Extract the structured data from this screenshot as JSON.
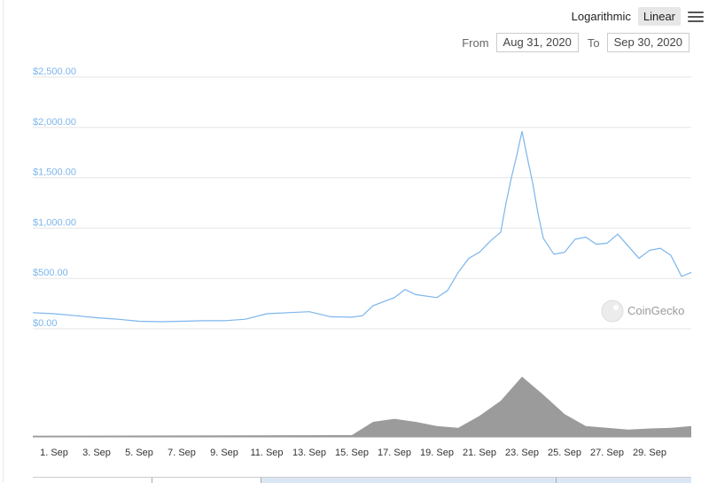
{
  "toolbar": {
    "scale_options": [
      "Logarithmic",
      "Linear"
    ],
    "active_scale": "Linear",
    "menu_icon": "hamburger-menu-icon"
  },
  "range_selector": {
    "from_label": "From",
    "from_value": "Aug 31, 2020",
    "to_label": "To",
    "to_value": "Sep 30, 2020"
  },
  "watermark": {
    "text": "CoinGecko",
    "icon": "coingecko-logo-icon"
  },
  "colors": {
    "line": "#7cb5ec",
    "volume": "#8a8a8a",
    "grid": "#e6e6e6",
    "accent": "#7cb5ec"
  },
  "chart_data": {
    "type": "line",
    "x_start": "2020-08-31",
    "x_end": "2020-09-30",
    "xticks": [
      "1. Sep",
      "3. Sep",
      "5. Sep",
      "7. Sep",
      "9. Sep",
      "11. Sep",
      "13. Sep",
      "15. Sep",
      "17. Sep",
      "19. Sep",
      "21. Sep",
      "23. Sep",
      "25. Sep",
      "27. Sep",
      "29. Sep"
    ],
    "y_tick_labels": [
      "$0.00",
      "$500.00",
      "$1,000.00",
      "$1,500.00",
      "$2,000.00",
      "$2,500.00"
    ],
    "ylim": [
      0,
      2500
    ],
    "grid": true,
    "price_series": {
      "x": [
        "2020-08-31",
        "2020-09-01",
        "2020-09-02",
        "2020-09-03",
        "2020-09-04",
        "2020-09-05",
        "2020-09-06",
        "2020-09-07",
        "2020-09-08",
        "2020-09-09",
        "2020-09-10",
        "2020-09-11",
        "2020-09-12",
        "2020-09-13",
        "2020-09-14",
        "2020-09-15",
        "2020-09-15 12:00",
        "2020-09-16",
        "2020-09-17",
        "2020-09-17 12:00",
        "2020-09-18",
        "2020-09-19",
        "2020-09-19 12:00",
        "2020-09-20",
        "2020-09-20 12:00",
        "2020-09-21",
        "2020-09-21 12:00",
        "2020-09-22",
        "2020-09-22 06:00",
        "2020-09-22 12:00",
        "2020-09-22 18:00",
        "2020-09-23",
        "2020-09-23 06:00",
        "2020-09-23 12:00",
        "2020-09-23 18:00",
        "2020-09-24",
        "2020-09-24 12:00",
        "2020-09-25",
        "2020-09-25 12:00",
        "2020-09-26",
        "2020-09-26 12:00",
        "2020-09-27",
        "2020-09-27 12:00",
        "2020-09-28",
        "2020-09-28 12:00",
        "2020-09-29",
        "2020-09-29 12:00",
        "2020-09-30",
        "2020-09-30 12:00",
        "2020-09-30 23:00"
      ],
      "y": [
        160,
        150,
        130,
        110,
        95,
        75,
        70,
        75,
        80,
        80,
        95,
        150,
        160,
        170,
        120,
        115,
        130,
        230,
        310,
        390,
        340,
        310,
        380,
        560,
        700,
        760,
        870,
        960,
        1250,
        1500,
        1720,
        1960,
        1700,
        1450,
        1150,
        900,
        740,
        760,
        890,
        910,
        840,
        850,
        940,
        820,
        700,
        780,
        800,
        730,
        520,
        560
      ]
    },
    "volume_series": {
      "x": [
        "2020-08-31",
        "2020-09-15",
        "2020-09-16",
        "2020-09-17",
        "2020-09-18",
        "2020-09-19",
        "2020-09-20",
        "2020-09-21",
        "2020-09-22",
        "2020-09-23",
        "2020-09-24",
        "2020-09-25",
        "2020-09-26",
        "2020-09-27",
        "2020-09-28",
        "2020-09-29",
        "2020-09-30",
        "2020-09-30 23:00"
      ],
      "y": [
        0.02,
        0.03,
        0.25,
        0.3,
        0.25,
        0.18,
        0.15,
        0.35,
        0.6,
        1.0,
        0.7,
        0.38,
        0.18,
        0.15,
        0.12,
        0.14,
        0.15,
        0.18
      ]
    }
  }
}
